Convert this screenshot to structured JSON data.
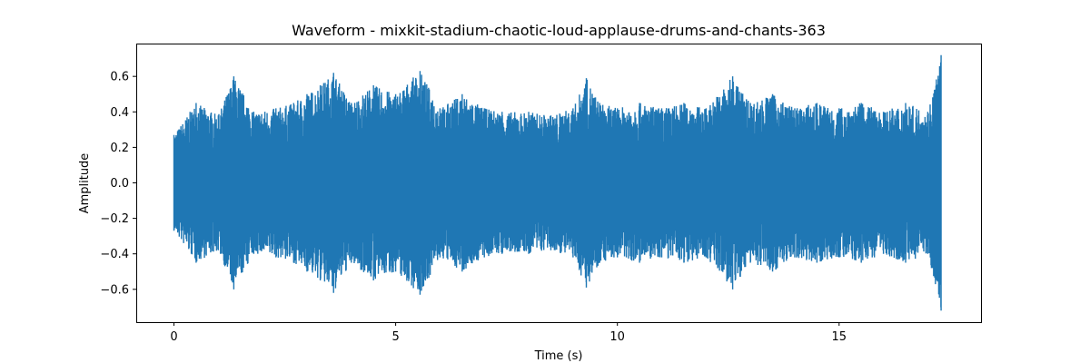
{
  "chart_data": {
    "type": "line",
    "title": "Waveform - mixkit-stadium-chaotic-loud-applause-drums-and-chants-363",
    "xlabel": "Time (s)",
    "ylabel": "Amplitude",
    "xlim": [
      -0.85,
      18.2
    ],
    "ylim": [
      -0.785,
      0.785
    ],
    "xticks": [
      0,
      5,
      10,
      15
    ],
    "xtick_labels": [
      "0",
      "5",
      "10",
      "15"
    ],
    "yticks": [
      -0.6,
      -0.4,
      -0.2,
      0.0,
      0.2,
      0.4,
      0.6
    ],
    "ytick_labels": [
      "−0.6",
      "−0.4",
      "−0.2",
      "0.0",
      "0.2",
      "0.4",
      "0.6"
    ],
    "grid": false,
    "legend": "none",
    "series": [
      {
        "color": "#1f77b4",
        "duration_s": 17.3,
        "envelope": {
          "x": [
            0.0,
            0.5,
            1.0,
            1.35,
            1.8,
            2.3,
            2.7,
            3.0,
            3.3,
            3.6,
            4.0,
            4.5,
            5.0,
            5.55,
            6.0,
            6.5,
            7.0,
            7.4,
            8.0,
            8.5,
            9.0,
            9.3,
            9.6,
            10.0,
            10.5,
            11.0,
            11.5,
            12.0,
            12.6,
            13.0,
            13.5,
            14.0,
            14.5,
            15.0,
            15.5,
            16.0,
            16.5,
            17.0,
            17.3
          ],
          "y": [
            0.27,
            0.45,
            0.38,
            0.6,
            0.4,
            0.42,
            0.45,
            0.5,
            0.55,
            0.62,
            0.45,
            0.55,
            0.5,
            0.63,
            0.42,
            0.5,
            0.42,
            0.4,
            0.4,
            0.38,
            0.42,
            0.59,
            0.45,
            0.42,
            0.45,
            0.42,
            0.45,
            0.42,
            0.6,
            0.45,
            0.5,
            0.42,
            0.45,
            0.42,
            0.45,
            0.4,
            0.45,
            0.4,
            0.72
          ]
        }
      }
    ]
  }
}
